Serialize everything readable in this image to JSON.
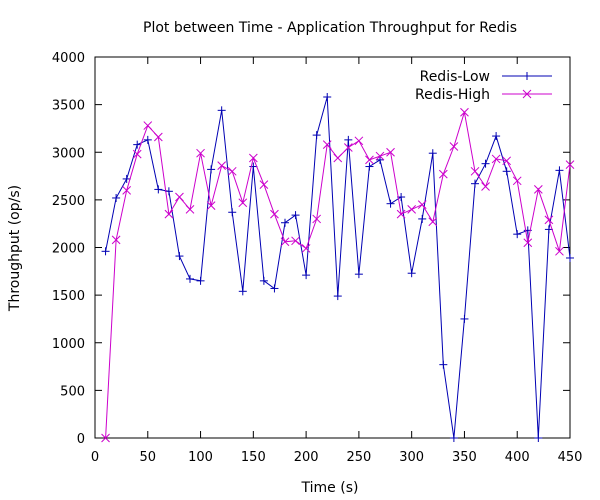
{
  "chart_data": {
    "type": "line",
    "title": "Plot between Time - Application Throughput for Redis",
    "xlabel": "Time (s)",
    "ylabel": "Throughput (op/s)",
    "xlim": [
      0,
      450
    ],
    "ylim": [
      0,
      4000
    ],
    "xticks": [
      0,
      50,
      100,
      150,
      200,
      250,
      300,
      350,
      400,
      450
    ],
    "yticks": [
      0,
      500,
      1000,
      1500,
      2000,
      2500,
      3000,
      3500,
      4000
    ],
    "grid": false,
    "legend_position": "top-right",
    "series": [
      {
        "name": "Redis-Low",
        "color": "#0000b3",
        "marker": "plus",
        "x": [
          10,
          20,
          30,
          40,
          50,
          60,
          70,
          80,
          90,
          100,
          110,
          120,
          130,
          140,
          150,
          160,
          170,
          180,
          190,
          200,
          210,
          220,
          230,
          240,
          250,
          260,
          270,
          280,
          290,
          300,
          310,
          320,
          330,
          340,
          350,
          360,
          370,
          380,
          390,
          400,
          410,
          420,
          430,
          440,
          450
        ],
        "y": [
          1960,
          2520,
          2720,
          3080,
          3130,
          2610,
          2590,
          1910,
          1670,
          1650,
          2820,
          3440,
          2370,
          1540,
          2850,
          1650,
          1570,
          2260,
          2340,
          1710,
          3180,
          3580,
          1490,
          3130,
          1720,
          2850,
          2920,
          2460,
          2530,
          1730,
          2300,
          2990,
          770,
          0,
          1250,
          2670,
          2880,
          3170,
          2800,
          2140,
          2180,
          0,
          2190,
          2810,
          1890
        ]
      },
      {
        "name": "Redis-High",
        "color": "#cc00cc",
        "marker": "cross",
        "x": [
          10,
          20,
          30,
          40,
          50,
          60,
          70,
          80,
          90,
          100,
          110,
          120,
          130,
          140,
          150,
          160,
          170,
          180,
          190,
          200,
          210,
          220,
          230,
          240,
          250,
          260,
          270,
          280,
          290,
          300,
          310,
          320,
          330,
          340,
          350,
          360,
          370,
          380,
          390,
          400,
          410,
          420,
          430,
          440,
          450
        ],
        "y": [
          0,
          2080,
          2600,
          2980,
          3280,
          3160,
          2350,
          2530,
          2400,
          2990,
          2440,
          2860,
          2800,
          2470,
          2940,
          2660,
          2350,
          2060,
          2070,
          1990,
          2300,
          3080,
          2940,
          3050,
          3120,
          2920,
          2960,
          3000,
          2350,
          2400,
          2450,
          2270,
          2770,
          3060,
          3420,
          2800,
          2640,
          2930,
          2910,
          2700,
          2050,
          2610,
          2290,
          1960,
          2870
        ]
      }
    ]
  }
}
